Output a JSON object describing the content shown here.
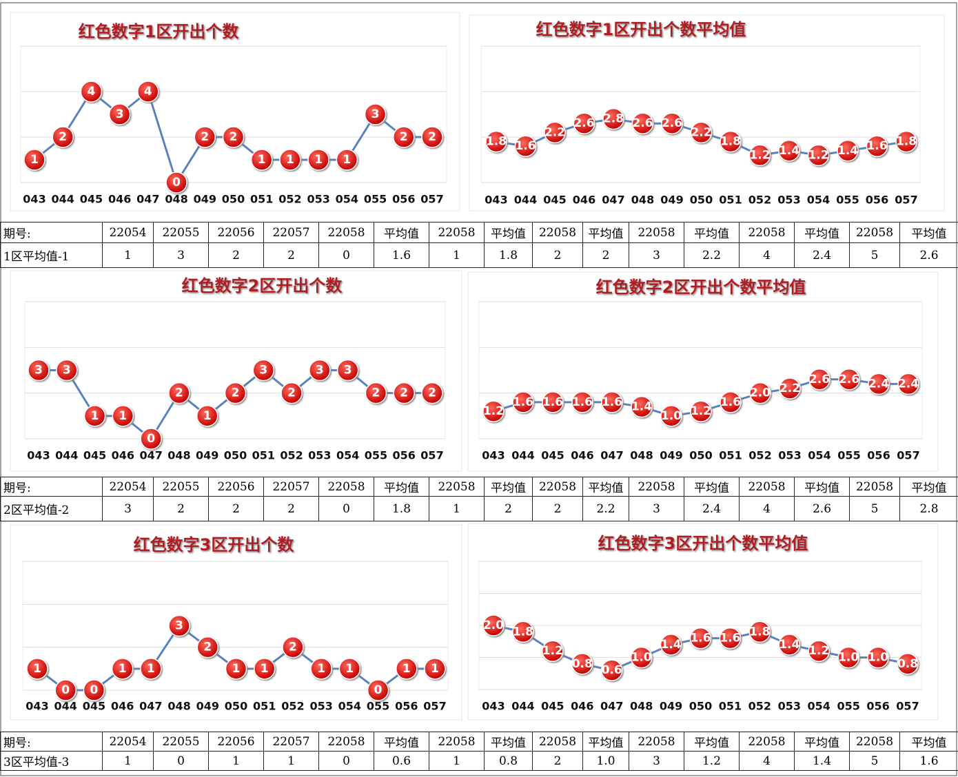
{
  "chart_data": [
    {
      "type": "line",
      "title": "红色数字1区开出个数",
      "categories": [
        "043",
        "044",
        "045",
        "046",
        "047",
        "048",
        "049",
        "050",
        "051",
        "052",
        "053",
        "054",
        "055",
        "056",
        "057"
      ],
      "series": [
        {
          "values": [
            1,
            2,
            4,
            3,
            4,
            0,
            2,
            2,
            1,
            1,
            1,
            1,
            3,
            2,
            2
          ],
          "color": "#5a82b8",
          "marker_color": "#e3161c"
        }
      ],
      "ylim": [
        0,
        6
      ],
      "ygrid": [
        0,
        2,
        4,
        6
      ]
    },
    {
      "type": "line",
      "title": "红色数字1区开出个数平均值",
      "categories": [
        "043",
        "044",
        "045",
        "046",
        "047",
        "048",
        "049",
        "050",
        "051",
        "052",
        "053",
        "054",
        "055",
        "056",
        "057"
      ],
      "series": [
        {
          "values": [
            1.8,
            1.6,
            2.2,
            2.6,
            2.8,
            2.6,
            2.6,
            2.2,
            1.8,
            1.2,
            1.4,
            1.2,
            1.4,
            1.6,
            1.8
          ],
          "value_labels": [
            "1.8",
            "1.6",
            "2.2",
            "2.6",
            "2.8",
            "2.6",
            "2.6",
            "2.2",
            "1.8",
            "1.2",
            "1.4",
            "1.2",
            "1.4",
            "1.6",
            "1.8"
          ],
          "color": "#5a82b8",
          "marker_color": "#e3161c"
        }
      ],
      "ylim": [
        0,
        6
      ],
      "ygrid": [
        0,
        2,
        4,
        6
      ]
    },
    {
      "type": "line",
      "title": "红色数字2区开出个数",
      "categories": [
        "043",
        "044",
        "045",
        "046",
        "047",
        "048",
        "049",
        "050",
        "051",
        "052",
        "053",
        "054",
        "055",
        "056",
        "057"
      ],
      "series": [
        {
          "values": [
            3,
            3,
            1,
            1,
            0,
            2,
            1,
            2,
            3,
            2,
            3,
            3,
            2,
            2,
            2
          ],
          "color": "#5a82b8",
          "marker_color": "#e3161c"
        }
      ],
      "ylim": [
        0,
        6
      ],
      "ygrid": [
        0,
        2,
        4,
        6
      ]
    },
    {
      "type": "line",
      "title": "红色数字2区开出个数平均值",
      "categories": [
        "043",
        "044",
        "045",
        "046",
        "047",
        "048",
        "049",
        "050",
        "051",
        "052",
        "053",
        "054",
        "055",
        "056",
        "057"
      ],
      "series": [
        {
          "values": [
            1.2,
            1.6,
            1.6,
            1.6,
            1.6,
            1.4,
            1.0,
            1.2,
            1.6,
            2.0,
            2.2,
            2.6,
            2.6,
            2.4,
            2.4
          ],
          "value_labels": [
            "1.2",
            "1.6",
            "1.6",
            "1.6",
            "1.6",
            "1.4",
            "1.0",
            "1.2",
            "1.6",
            "2.0",
            "2.2",
            "2.6",
            "2.6",
            "2.4",
            "2.4"
          ],
          "color": "#5a82b8",
          "marker_color": "#e3161c"
        }
      ],
      "ylim": [
        0,
        6
      ],
      "ygrid": [
        0,
        2,
        4,
        6
      ]
    },
    {
      "type": "line",
      "title": "红色数字3区开出个数",
      "categories": [
        "043",
        "044",
        "045",
        "046",
        "047",
        "048",
        "049",
        "050",
        "051",
        "052",
        "053",
        "054",
        "055",
        "056",
        "057"
      ],
      "series": [
        {
          "values": [
            1,
            0,
            0,
            1,
            1,
            3,
            2,
            1,
            1,
            2,
            1,
            1,
            0,
            1,
            1
          ],
          "color": "#5a82b8",
          "marker_color": "#e3161c"
        }
      ],
      "ylim": [
        0,
        6
      ],
      "ygrid": [
        0,
        2,
        4,
        6
      ]
    },
    {
      "type": "line",
      "title": "红色数字3区开出个数平均值",
      "categories": [
        "043",
        "044",
        "045",
        "046",
        "047",
        "048",
        "049",
        "050",
        "051",
        "052",
        "053",
        "054",
        "055",
        "056",
        "057"
      ],
      "series": [
        {
          "values": [
            2.0,
            1.8,
            1.2,
            0.8,
            0.6,
            1.0,
            1.4,
            1.6,
            1.6,
            1.8,
            1.4,
            1.2,
            1.0,
            1.0,
            0.8
          ],
          "value_labels": [
            "2.0",
            "1.8",
            "1.2",
            "0.8",
            "0.6",
            "1.0",
            "1.4",
            "1.6",
            "1.6",
            "1.8",
            "1.4",
            "1.2",
            "1.0",
            "1.0",
            "0.8"
          ],
          "color": "#5a82b8",
          "marker_color": "#e3161c"
        }
      ],
      "ylim": [
        0,
        4
      ],
      "ygrid": [
        0,
        1,
        2,
        3,
        4
      ]
    }
  ],
  "tables": [
    {
      "rows": [
        [
          "期号:",
          "22054",
          "22055",
          "22056",
          "22057",
          "22058",
          "平均值",
          "22058",
          "平均值",
          "22058",
          "平均值",
          "22058",
          "平均值",
          "22058",
          "平均值",
          "22058",
          "平均值"
        ],
        [
          "1区平均值-1",
          "1",
          "3",
          "2",
          "2",
          "0",
          "1.6",
          "1",
          "1.8",
          "2",
          "2",
          "3",
          "2.2",
          "4",
          "2.4",
          "5",
          "2.6"
        ]
      ]
    },
    {
      "rows": [
        [
          "期号:",
          "22054",
          "22055",
          "22056",
          "22057",
          "22058",
          "平均值",
          "22058",
          "平均值",
          "22058",
          "平均值",
          "22058",
          "平均值",
          "22058",
          "平均值",
          "22058",
          "平均值"
        ],
        [
          "2区平均值-2",
          "3",
          "2",
          "2",
          "2",
          "0",
          "1.8",
          "1",
          "2",
          "2",
          "2.2",
          "3",
          "2.4",
          "4",
          "2.6",
          "5",
          "2.8"
        ]
      ]
    },
    {
      "rows": [
        [
          "期号:",
          "22054",
          "22055",
          "22056",
          "22057",
          "22058",
          "平均值",
          "22058",
          "平均值",
          "22058",
          "平均值",
          "22058",
          "平均值",
          "22058",
          "平均值",
          "22058",
          "平均值"
        ],
        [
          "3区平均值-3",
          "1",
          "0",
          "1",
          "1",
          "0",
          "0.6",
          "1",
          "0.8",
          "2",
          "1.0",
          "3",
          "1.2",
          "4",
          "1.4",
          "5",
          "1.6"
        ]
      ]
    }
  ]
}
